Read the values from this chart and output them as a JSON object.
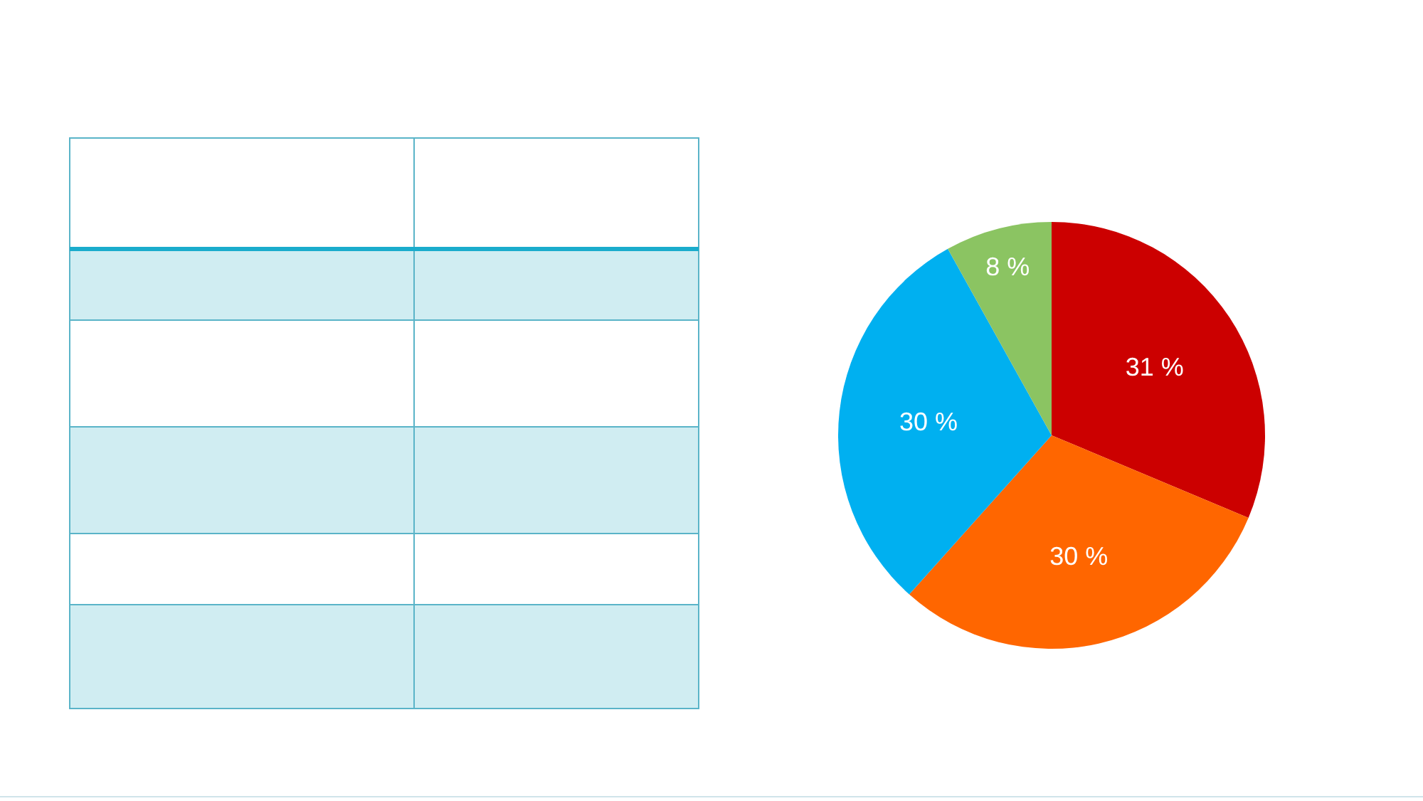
{
  "chart_data": {
    "type": "pie",
    "categories": [
      null,
      null,
      null,
      null
    ],
    "values": [
      31,
      30,
      30,
      8
    ],
    "colors": [
      "#cc0000",
      "#ff6600",
      "#00b0f0",
      "#8bc462"
    ],
    "value_labels": [
      "31 %",
      "30 %",
      "30 %",
      "8 %"
    ]
  }
}
